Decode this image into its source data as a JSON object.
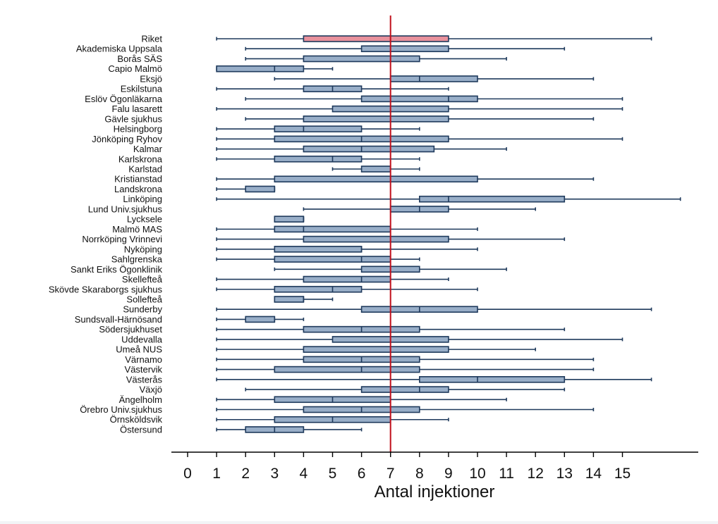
{
  "chart_data": {
    "type": "boxplot",
    "orientation": "horizontal",
    "title": "",
    "xlabel": "Antal injektioner",
    "ylabel": "",
    "xlim": [
      0,
      17.7
    ],
    "x_ticks": [
      0,
      1,
      2,
      3,
      4,
      5,
      6,
      7,
      8,
      9,
      10,
      11,
      12,
      13,
      14,
      15
    ],
    "reference_line": {
      "value": 7,
      "color": "#c0101c"
    },
    "grid": false,
    "legend": "none",
    "colors": {
      "box_fill": "#98aec8",
      "box_stroke": "#1f3a5c",
      "whisker": "#1f3a5c",
      "highlight_fill": "#e8919c",
      "axis": "#000000"
    },
    "categories": [
      {
        "label": "Riket",
        "min": 1,
        "q1": 4,
        "median": 7,
        "q3": 9,
        "max": 16,
        "highlight": true
      },
      {
        "label": "Akademiska Uppsala",
        "min": 2,
        "q1": 6,
        "median": 7,
        "q3": 9,
        "max": 13
      },
      {
        "label": "Borås SÄS",
        "min": 2,
        "q1": 4,
        "median": 7,
        "q3": 8,
        "max": 11
      },
      {
        "label": "Capio Malmö",
        "min": 1,
        "q1": 1,
        "median": 3,
        "q3": 4,
        "max": 5
      },
      {
        "label": "Eksjö",
        "min": 3,
        "q1": 7,
        "median": 8,
        "q3": 10,
        "max": 14
      },
      {
        "label": "Eskilstuna",
        "min": 1,
        "q1": 4,
        "median": 5,
        "q3": 6,
        "max": 9
      },
      {
        "label": "Eslöv Ögonläkarna",
        "min": 2,
        "q1": 6,
        "median": 9,
        "q3": 10,
        "max": 15
      },
      {
        "label": "Falu lasarett",
        "min": 1,
        "q1": 5,
        "median": 7,
        "q3": 9,
        "max": 15
      },
      {
        "label": "Gävle sjukhus",
        "min": 2,
        "q1": 4,
        "median": 7,
        "q3": 9,
        "max": 14
      },
      {
        "label": "Helsingborg",
        "min": 1,
        "q1": 3,
        "median": 4,
        "q3": 6,
        "max": 8
      },
      {
        "label": "Jönköping Ryhov",
        "min": 1,
        "q1": 3,
        "median": 6,
        "q3": 9,
        "max": 15
      },
      {
        "label": "Kalmar",
        "min": 1,
        "q1": 4,
        "median": 6,
        "q3": 8.5,
        "max": 11
      },
      {
        "label": "Karlskrona",
        "min": 1,
        "q1": 3,
        "median": 5,
        "q3": 6,
        "max": 8
      },
      {
        "label": "Karlstad",
        "min": 5,
        "q1": 6,
        "median": 7,
        "q3": 7,
        "max": 8
      },
      {
        "label": "Kristianstad",
        "min": 1,
        "q1": 3,
        "median": 7,
        "q3": 10,
        "max": 14
      },
      {
        "label": "Landskrona",
        "min": 1,
        "q1": 2,
        "median": 3,
        "q3": 3,
        "max": 3
      },
      {
        "label": "Linköping",
        "min": 1,
        "q1": 8,
        "median": 9,
        "q3": 13,
        "max": 17
      },
      {
        "label": "Lund Univ.sjukhus",
        "min": 4,
        "q1": 7,
        "median": 8,
        "q3": 9,
        "max": 12
      },
      {
        "label": "Lycksele",
        "min": 3,
        "q1": 3,
        "median": 4,
        "q3": 4,
        "max": 4
      },
      {
        "label": "Malmö MAS",
        "min": 1,
        "q1": 3,
        "median": 4,
        "q3": 7,
        "max": 10
      },
      {
        "label": "Norrköping Vrinnevi",
        "min": 1,
        "q1": 4,
        "median": 7,
        "q3": 9,
        "max": 13
      },
      {
        "label": "Nyköping",
        "min": 1,
        "q1": 3,
        "median": 6,
        "q3": 6,
        "max": 10
      },
      {
        "label": "Sahlgrenska",
        "min": 1,
        "q1": 3,
        "median": 6,
        "q3": 7,
        "max": 8
      },
      {
        "label": "Sankt Eriks Ögonklinik",
        "min": 3,
        "q1": 6,
        "median": 7,
        "q3": 8,
        "max": 11
      },
      {
        "label": "Skellefteå",
        "min": 1,
        "q1": 4,
        "median": 6,
        "q3": 7,
        "max": 9
      },
      {
        "label": "Skövde Skaraborgs sjukhus",
        "min": 1,
        "q1": 3,
        "median": 5,
        "q3": 6,
        "max": 10
      },
      {
        "label": "Sollefteå",
        "min": 3,
        "q1": 3,
        "median": 4,
        "q3": 4,
        "max": 5
      },
      {
        "label": "Sunderby",
        "min": 1,
        "q1": 6,
        "median": 8,
        "q3": 10,
        "max": 16
      },
      {
        "label": "Sundsvall-Härnösand",
        "min": 1,
        "q1": 2,
        "median": 3,
        "q3": 3,
        "max": 4
      },
      {
        "label": "Södersjukhuset",
        "min": 1,
        "q1": 4,
        "median": 6,
        "q3": 8,
        "max": 13
      },
      {
        "label": "Uddevalla",
        "min": 1,
        "q1": 5,
        "median": 7,
        "q3": 9,
        "max": 15
      },
      {
        "label": "Umeå NUS",
        "min": 1,
        "q1": 4,
        "median": 7,
        "q3": 9,
        "max": 12
      },
      {
        "label": "Värnamo",
        "min": 1,
        "q1": 4,
        "median": 6,
        "q3": 8,
        "max": 14
      },
      {
        "label": "Västervik",
        "min": 1,
        "q1": 3,
        "median": 6,
        "q3": 8,
        "max": 14
      },
      {
        "label": "Västerås",
        "min": 1,
        "q1": 8,
        "median": 10,
        "q3": 13,
        "max": 16
      },
      {
        "label": "Växjö",
        "min": 2,
        "q1": 6,
        "median": 8,
        "q3": 9,
        "max": 13
      },
      {
        "label": "Ängelholm",
        "min": 1,
        "q1": 3,
        "median": 5,
        "q3": 7,
        "max": 11
      },
      {
        "label": "Örebro Univ.sjukhus",
        "min": 1,
        "q1": 4,
        "median": 6,
        "q3": 8,
        "max": 14
      },
      {
        "label": "Örnsköldsvik",
        "min": 1,
        "q1": 3,
        "median": 5,
        "q3": 7,
        "max": 9
      },
      {
        "label": "Östersund",
        "min": 1,
        "q1": 2,
        "median": 3,
        "q3": 4,
        "max": 6
      }
    ]
  }
}
